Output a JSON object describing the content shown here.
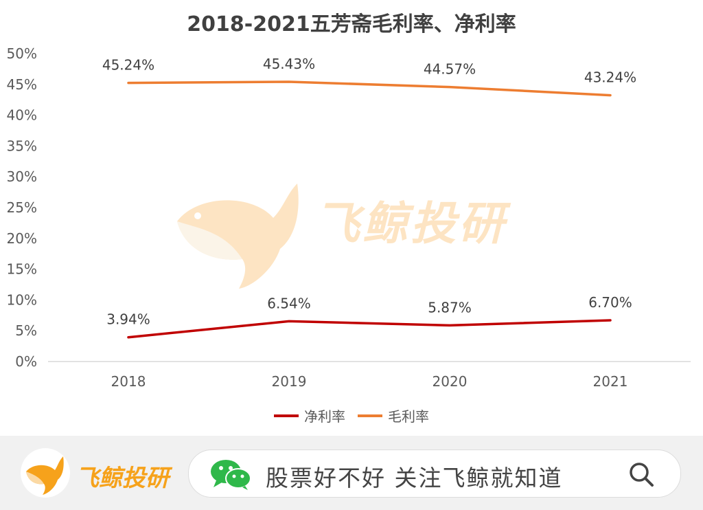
{
  "chart_data": {
    "type": "line",
    "title": "2018-2021五芳斋毛利率、净利率",
    "categories": [
      "2018",
      "2019",
      "2020",
      "2021"
    ],
    "ylim": [
      0,
      50
    ],
    "yticks": [
      "0%",
      "5%",
      "10%",
      "15%",
      "20%",
      "25%",
      "30%",
      "35%",
      "40%",
      "45%",
      "50%"
    ],
    "grid": false,
    "legend_position": "bottom",
    "series": [
      {
        "name": "净利率",
        "color": "#c00000",
        "values": [
          3.94,
          6.54,
          5.87,
          6.7
        ],
        "labels": [
          "3.94%",
          "6.54%",
          "5.87%",
          "6.70%"
        ]
      },
      {
        "name": "毛利率",
        "color": "#ed7d31",
        "values": [
          45.24,
          45.43,
          44.57,
          43.24
        ],
        "labels": [
          "45.24%",
          "45.43%",
          "44.57%",
          "43.24%"
        ]
      }
    ]
  },
  "watermark": {
    "text": "飞鲸投研"
  },
  "footer": {
    "brand": "飞鲸投研",
    "search_text": "股票好不好 关注飞鲸就知道"
  },
  "icons": {
    "logo": "whale-logo-icon",
    "wechat": "wechat-icon",
    "search": "search-icon"
  }
}
